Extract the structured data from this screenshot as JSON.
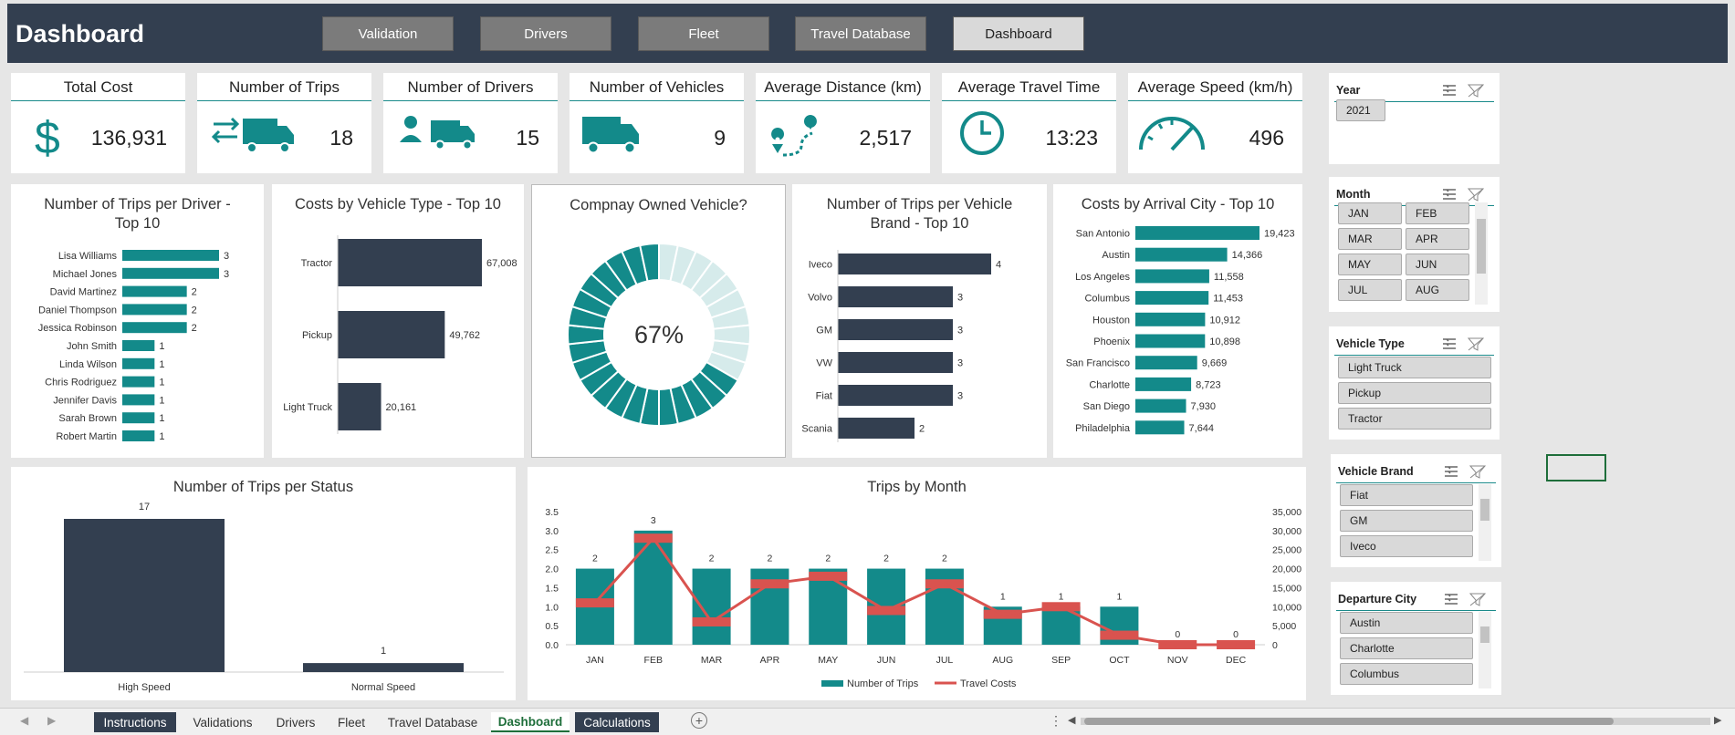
{
  "header": {
    "title": "Dashboard",
    "nav": [
      "Validation",
      "Drivers",
      "Fleet",
      "Travel Database",
      "Dashboard"
    ]
  },
  "kpis": [
    {
      "name": "Total Cost",
      "value": "136,931",
      "icon": "dollar-icon"
    },
    {
      "name": "Number of Trips",
      "value": "18",
      "icon": "arrows-truck-icon"
    },
    {
      "name": "Number of Drivers",
      "value": "15",
      "icon": "driver-truck-icon"
    },
    {
      "name": "Number of Vehicles",
      "value": "9",
      "icon": "truck-icon"
    },
    {
      "name": "Average Distance (km)",
      "value": "2,517",
      "icon": "route-icon"
    },
    {
      "name": "Average Travel Time",
      "value": "13:23",
      "icon": "clock-icon"
    },
    {
      "name": "Average Speed (km/h)",
      "value": "496",
      "icon": "speedometer-icon"
    }
  ],
  "charts": {
    "drivers_title": "Number of Trips per Driver - Top 10",
    "vehtype_title": "Costs by Vehicle Type - Top 10",
    "owned_title": "Compnay Owned Vehicle?",
    "brand_title": "Number of Trips per Vehicle Brand - Top 10",
    "city_title": "Costs by Arrival City - Top 10",
    "status_title": "Number of Trips per Status",
    "month_title": "Trips by Month"
  },
  "chart_data": [
    {
      "type": "bar",
      "title": "Number of Trips per Driver - Top 10",
      "categories": [
        "Lisa Williams",
        "Michael Jones",
        "David Martinez",
        "Daniel Thompson",
        "Jessica Robinson",
        "John Smith",
        "Linda Wilson",
        "Chris Rodriguez",
        "Jennifer Davis",
        "Sarah Brown",
        "Robert Martin"
      ],
      "values": [
        3,
        3,
        2,
        2,
        2,
        1,
        1,
        1,
        1,
        1,
        1
      ],
      "color": "#138a8a"
    },
    {
      "type": "bar",
      "title": "Costs by Vehicle Type - Top 10",
      "categories": [
        "Tractor",
        "Pickup",
        "Light Truck"
      ],
      "values": [
        67008,
        49762,
        20161
      ],
      "labels": [
        "67,008",
        "49,762",
        "20,161"
      ],
      "color": "#333f50"
    },
    {
      "type": "pie",
      "title": "Compnay Owned Vehicle?",
      "center_label": "67%",
      "values": [
        67,
        33
      ],
      "colors": [
        "#138a8a",
        "#d6ebeb"
      ]
    },
    {
      "type": "bar",
      "title": "Number of Trips per Vehicle Brand - Top 10",
      "categories": [
        "Iveco",
        "Volvo",
        "GM",
        "VW",
        "Fiat",
        "Scania"
      ],
      "values": [
        4,
        3,
        3,
        3,
        3,
        2
      ],
      "color": "#333f50"
    },
    {
      "type": "bar",
      "title": "Costs by Arrival City - Top 10",
      "categories": [
        "San Antonio",
        "Austin",
        "Los Angeles",
        "Columbus",
        "Houston",
        "Phoenix",
        "San Francisco",
        "Charlotte",
        "San Diego",
        "Philadelphia"
      ],
      "values": [
        19423,
        14366,
        11558,
        11453,
        10912,
        10898,
        9669,
        8723,
        7930,
        7644
      ],
      "labels": [
        "19,423",
        "14,366",
        "11,558",
        "11,453",
        "10,912",
        "10,898",
        "9,669",
        "8,723",
        "7,930",
        "7,644"
      ],
      "color": "#138a8a"
    },
    {
      "type": "bar",
      "title": "Number of Trips per Status",
      "categories": [
        "High Speed",
        "Normal Speed"
      ],
      "values": [
        17,
        1
      ],
      "color": "#333f50"
    },
    {
      "type": "bar",
      "title": "Trips by Month",
      "categories": [
        "JAN",
        "FEB",
        "MAR",
        "APR",
        "MAY",
        "JUN",
        "JUL",
        "AUG",
        "SEP",
        "OCT",
        "NOV",
        "DEC"
      ],
      "series": [
        {
          "name": "Number of Trips",
          "values": [
            2,
            3,
            2,
            2,
            2,
            2,
            2,
            1,
            1,
            1,
            0,
            0
          ],
          "color": "#138a8a"
        },
        {
          "name": "Travel Costs",
          "values": [
            11000,
            28000,
            6000,
            16000,
            18000,
            9000,
            16000,
            8000,
            10000,
            2500,
            0,
            0
          ],
          "color": "#d9534f"
        }
      ],
      "y_left_ticks": [
        "0.0",
        "0.5",
        "1.0",
        "1.5",
        "2.0",
        "2.5",
        "3.0",
        "3.5"
      ],
      "y_right_ticks": [
        "0",
        "5,000",
        "10,000",
        "15,000",
        "20,000",
        "25,000",
        "30,000",
        "35,000"
      ],
      "ylim": [
        0,
        3.5
      ],
      "y2lim": [
        0,
        35000
      ]
    }
  ],
  "slicers": [
    {
      "title": "Year",
      "items": [
        "2021"
      ]
    },
    {
      "title": "Month",
      "items": [
        "JAN",
        "FEB",
        "MAR",
        "APR",
        "MAY",
        "JUN",
        "JUL",
        "AUG"
      ]
    },
    {
      "title": "Vehicle Type",
      "items": [
        "Light Truck",
        "Pickup",
        "Tractor"
      ]
    },
    {
      "title": "Vehicle Brand",
      "items": [
        "Fiat",
        "GM",
        "Iveco"
      ]
    },
    {
      "title": "Departure City",
      "items": [
        "Austin",
        "Charlotte",
        "Columbus"
      ]
    }
  ],
  "tabs": [
    "Instructions",
    "Validations",
    "Drivers",
    "Fleet",
    "Travel Database",
    "Dashboard",
    "Calculations"
  ]
}
